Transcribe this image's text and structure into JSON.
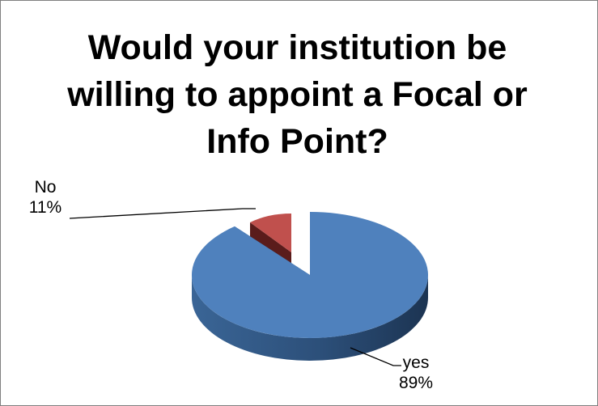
{
  "chart_data": {
    "type": "pie",
    "title": "Would your institution be willing to appoint a Focal or Info Point?",
    "slices": [
      {
        "label": "yes",
        "value": 89,
        "percent_label": "89%",
        "color": "#4f81bd"
      },
      {
        "label": "No",
        "value": 11,
        "percent_label": "11%",
        "color": "#c0504d"
      }
    ],
    "three_d": true,
    "exploded": true,
    "legend": "none"
  }
}
